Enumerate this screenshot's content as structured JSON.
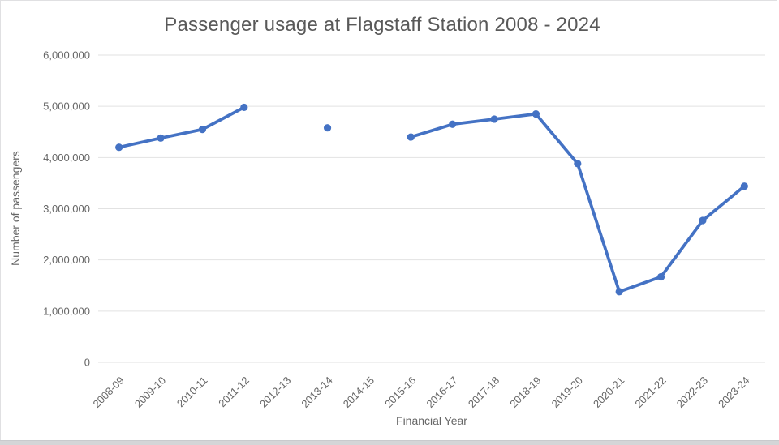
{
  "page": {
    "bottom_bar_color": "#d4d5d7"
  },
  "chart_data": {
    "type": "line",
    "title": "Passenger usage at Flagstaff Station 2008 - 2024",
    "xlabel": "Financial Year",
    "ylabel": "Number of passengers",
    "categories": [
      "2008-09",
      "2009-10",
      "2010-11",
      "2011-12",
      "2012-13",
      "2013-14",
      "2014-15",
      "2015-16",
      "2016-17",
      "2017-18",
      "2018-19",
      "2019-20",
      "2020-21",
      "2021-22",
      "2022-23",
      "2023-24"
    ],
    "values": [
      4200000,
      4380000,
      4550000,
      4980000,
      null,
      4580000,
      null,
      4400000,
      4650000,
      4750000,
      4850000,
      3880000,
      1380000,
      1670000,
      2770000,
      3440000
    ],
    "ylim": [
      0,
      6000000
    ],
    "y_ticks": [
      0,
      1000000,
      2000000,
      3000000,
      4000000,
      5000000,
      6000000
    ],
    "y_tick_labels": [
      "0",
      "1,000,000",
      "2,000,000",
      "3,000,000",
      "4,000,000",
      "5,000,000",
      "6,000,000"
    ],
    "grid": true,
    "legend": "none",
    "line_color": "#4472c4",
    "marker": "circle",
    "gridline_color": "#e2e2e2",
    "tick_label_color": "#666666"
  }
}
